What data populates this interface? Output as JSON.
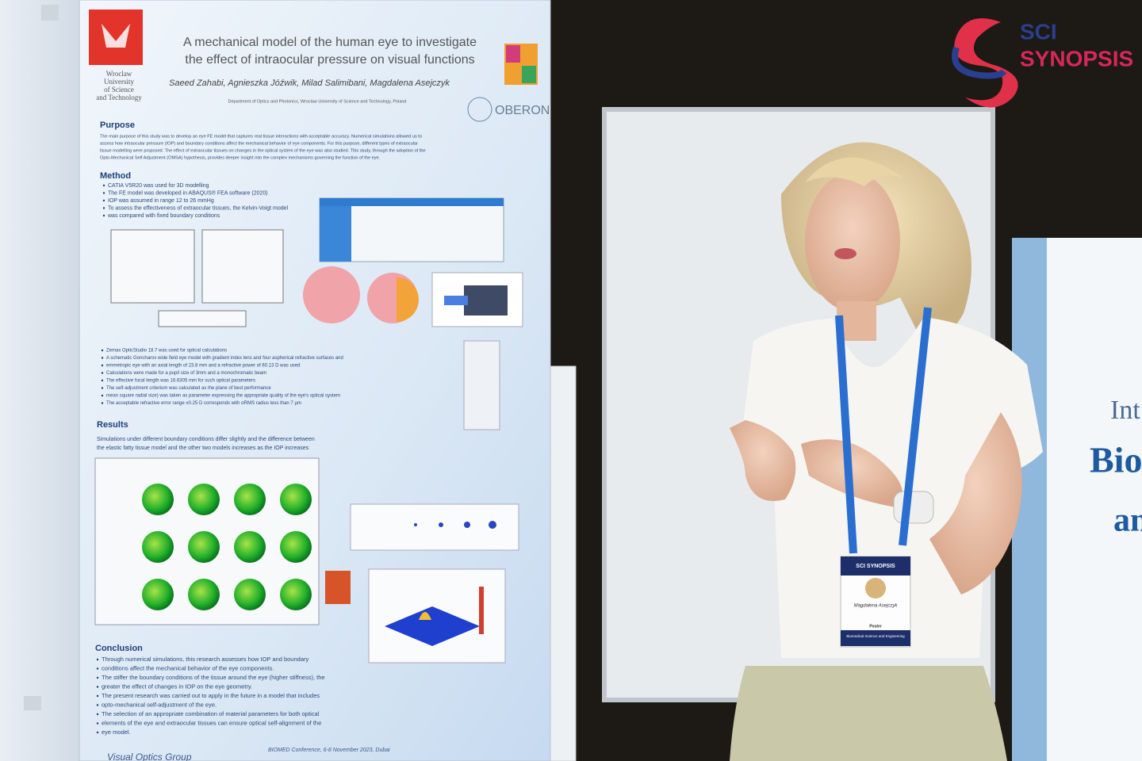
{
  "logo": {
    "line1": "SCI",
    "line2": "SYNOPSIS"
  },
  "poster": {
    "university": [
      "Wroclaw",
      "University",
      "of Science",
      "and Technology"
    ],
    "title": [
      "A mechanical model of the human eye to investigate",
      "the effect of intraocular pressure on visual functions"
    ],
    "authors": "Saeed Zahabi, Agnieszka Jóźwik, Milad Salimibani, Magdalena Asejczyk",
    "affiliation": "Department of Optics and Photonics, Wroclaw University of Science and Technology, Poland",
    "partner": "OBERON",
    "sections": {
      "purpose": {
        "heading": "Purpose",
        "lines": [
          "The main purpose of this study was to develop an eye FE model that captures real tissue interactions with acceptable accuracy. Numerical simulations allowed us to",
          "assess how intraocular pressure (IOP) and boundary conditions affect the mechanical behavior of eye components. For this purpose, different types of extraocular",
          "tissue modelling were proposed. The effect of extraocular tissues on changes in the optical system of the eye was also studied. This study, through the adoption of the",
          "Opto-Mechanical Self Adjustment (OMSA) hypothesis, provides deeper insight into the complex mechanisms governing the function of the eye."
        ]
      },
      "method": {
        "heading": "Method",
        "bullets": [
          "CATIA V5R20 was used for 3D modelling",
          "The FE model was developed in ABAQUS® FEA software (2020)",
          "IOP was assumed in range 12 to 26 mmHg",
          "To assess the effectiveness of extraocular tissues, the Kelvin-Voigt model",
          "was compared with fixed boundary conditions"
        ]
      },
      "optics": {
        "bullets": [
          "Zemax OpticStudio 18.7 was used for optical calculations",
          "A schematic Goncharov wide field eye model with gradient index lens and four aspherical refractive surfaces and",
          "emmetropic eye with an axial length of 23.8 mm and a refractive power of 60.13 D was used",
          "Calculations were made for a pupil size of 3mm and a monochromatic beam",
          "The effective focal length was 16.6305 mm for such optical parameters",
          "The self-adjustment criterium was calculated as the plane of best performance",
          "mean square radial size) was taken as parameter expressing the appropriate quality of the eye's optical system",
          "The acceptable refractive error range ±0.25 D corresponds with σRMS radius less than 7 µm"
        ]
      },
      "results": {
        "heading": "Results",
        "lines": [
          "Simulations under different boundary conditions differ slightly and the difference between",
          "the elastic fatty tissue model and the other two models increases as the IOP increases"
        ]
      },
      "conclusion": {
        "heading": "Conclusion",
        "bullets": [
          "Through numerical simulations, this research assesses how IOP and boundary",
          "conditions affect the mechanical behavior of the eye components.",
          "The stiffer the boundary conditions of the tissue around the eye (higher stiffness), the",
          "greater the effect of changes in IOP on the eye geometry.",
          "The present research was carried out to apply in the future in a model that includes",
          "opto-mechanical self-adjustment of the eye.",
          "The selection of an appropriate combination of material parameters for both optical",
          "elements of the eye and extraocular tissues can ensure optical self-alignment of the",
          "eye model."
        ]
      }
    },
    "footer": {
      "group": "Visual Optics Group",
      "conference": "BIOMED Conference, 6-8 November 2023, Dubai"
    }
  },
  "banner": [
    "Int",
    "Bio",
    "an"
  ],
  "badge": {
    "brand": "SCI SYNOPSIS",
    "name": "Magdalena Asejczyk",
    "role": "Poster",
    "track": "Biomedical Science and Engineering"
  }
}
